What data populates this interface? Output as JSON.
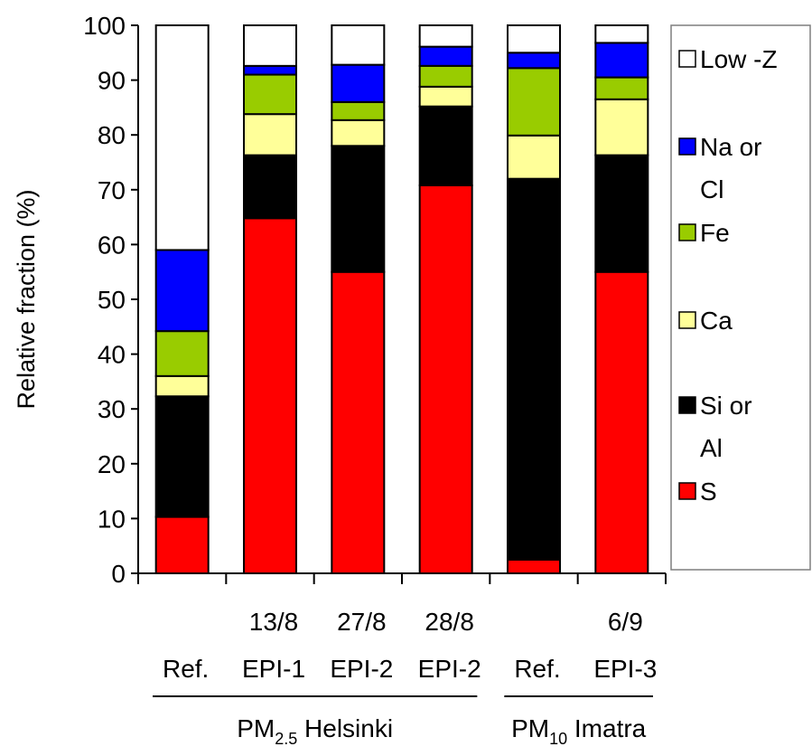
{
  "chart_data": {
    "type": "bar",
    "stacked": true,
    "ylabel": "Relative fraction (%)",
    "ylim": [
      0,
      100
    ],
    "yticks": [
      0,
      10,
      20,
      30,
      40,
      50,
      60,
      70,
      80,
      90,
      100
    ],
    "grid": false,
    "legend_position": "right",
    "categories": [
      {
        "date": "",
        "label": "Ref."
      },
      {
        "date": "13/8",
        "label": "EPI-1"
      },
      {
        "date": "27/8",
        "label": "EPI-2"
      },
      {
        "date": "28/8",
        "label": "EPI-2"
      },
      {
        "date": "",
        "label": "Ref."
      },
      {
        "date": "6/9",
        "label": "EPI-3"
      }
    ],
    "groups": [
      {
        "prefix": "PM",
        "subscript": "2.5",
        "suffix": " Helsinki",
        "categories": [
          0,
          1,
          2,
          3
        ]
      },
      {
        "prefix": "PM",
        "subscript": "10",
        "suffix": " Imatra",
        "categories": [
          4,
          5
        ]
      }
    ],
    "series": [
      {
        "name": "S",
        "color": "#ff0000",
        "values": [
          10.3,
          64.8,
          55,
          70.8,
          2.5,
          55
        ]
      },
      {
        "name": "Si or Al",
        "color": "#000000",
        "values": [
          22,
          11.5,
          23,
          14.4,
          69.5,
          21.3
        ]
      },
      {
        "name": "Ca",
        "color": "#ffff99",
        "values": [
          3.7,
          7.5,
          4.7,
          3.6,
          7.9,
          10.2
        ]
      },
      {
        "name": "Fe",
        "color": "#99cc00",
        "values": [
          8.2,
          7.2,
          3.3,
          3.8,
          12.3,
          4
        ]
      },
      {
        "name": "Na or Cl",
        "color": "#0000ff",
        "values": [
          14.8,
          1.6,
          6.8,
          3.5,
          2.8,
          6.3
        ]
      },
      {
        "name": "Low -Z",
        "color": "#ffffff",
        "values": [
          41,
          7.4,
          7.2,
          3.9,
          5,
          3.2
        ]
      }
    ],
    "legend": [
      {
        "name": "Low -Z",
        "color": "#ffffff",
        "lines": [
          "Low -Z"
        ]
      },
      {
        "name": "Na or Cl",
        "color": "#0000ff",
        "lines": [
          "Na or",
          "Cl"
        ]
      },
      {
        "name": "Fe",
        "color": "#99cc00",
        "lines": [
          "Fe"
        ]
      },
      {
        "name": "Ca",
        "color": "#ffff99",
        "lines": [
          "Ca"
        ]
      },
      {
        "name": "Si or Al",
        "color": "#000000",
        "lines": [
          "Si or",
          "Al"
        ]
      },
      {
        "name": "S",
        "color": "#ff0000",
        "lines": [
          "S"
        ]
      }
    ]
  }
}
